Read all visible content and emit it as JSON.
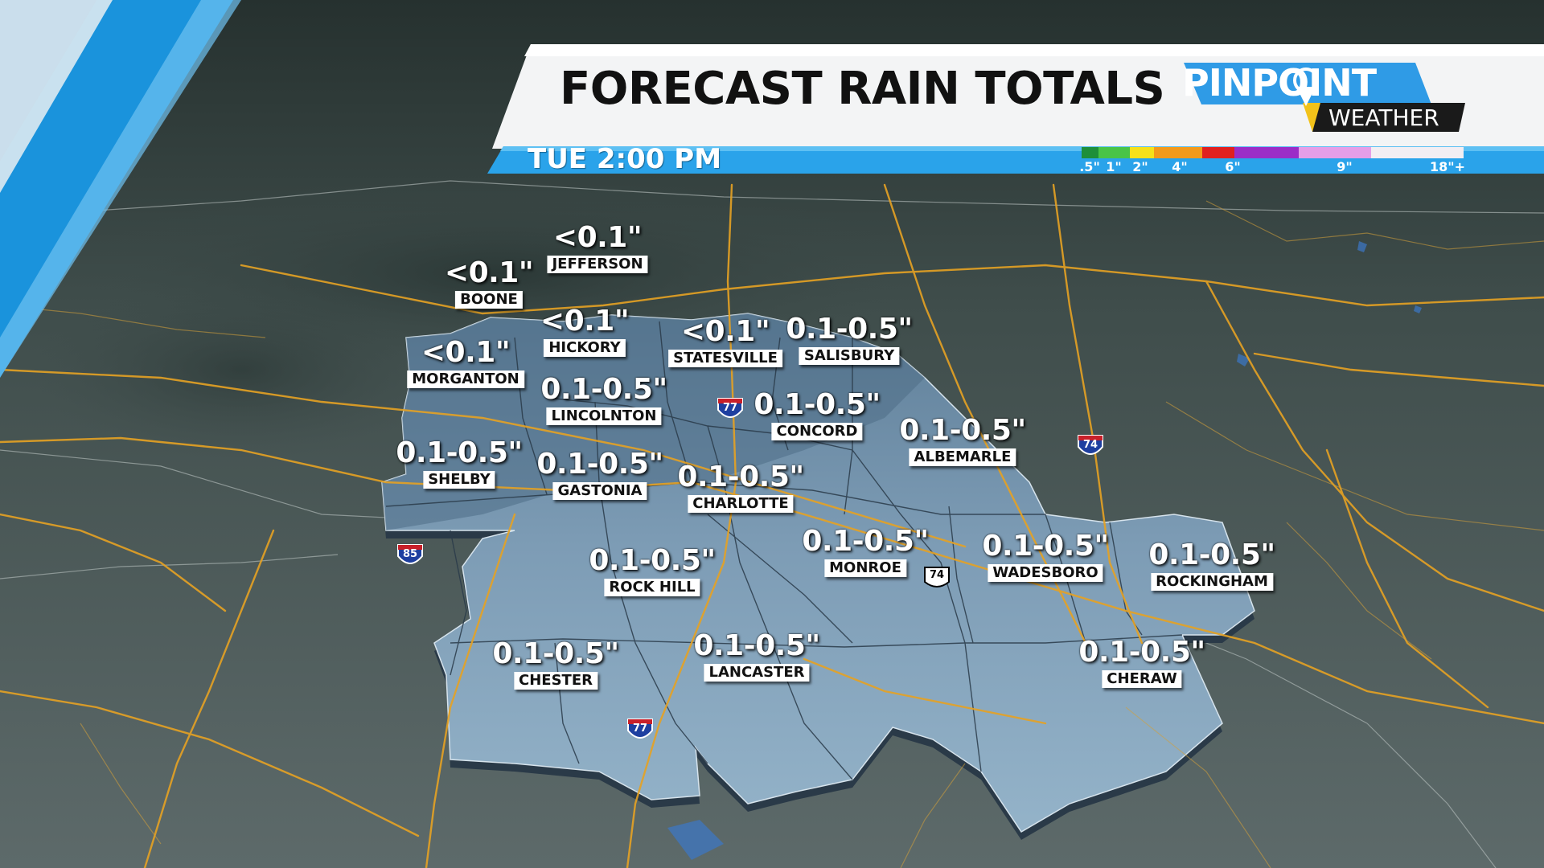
{
  "header": {
    "title": "FORECAST RAIN TOTALS",
    "time": "TUE 2:00 PM",
    "logo": {
      "top": "PINPOINT",
      "bottom": "WEATHER"
    },
    "scale": {
      "ticks": [
        ".5\"",
        "1\"",
        "2\"",
        "4\"",
        "6\"",
        "9\"",
        "18\"+"
      ],
      "colors": [
        "#1e8f3a",
        "#49c447",
        "#f6e11a",
        "#f39a1b",
        "#e0201f",
        "#9b2dc7",
        "#e69ee8",
        "#f3eef3"
      ]
    }
  },
  "cities": [
    {
      "id": "jefferson",
      "amount": "<0.1\"",
      "name": "JEFFERSON"
    },
    {
      "id": "boone",
      "amount": "<0.1\"",
      "name": "BOONE"
    },
    {
      "id": "hickory",
      "amount": "<0.1\"",
      "name": "HICKORY"
    },
    {
      "id": "statesville",
      "amount": "<0.1\"",
      "name": "STATESVILLE"
    },
    {
      "id": "salisbury",
      "amount": "0.1-0.5\"",
      "name": "SALISBURY"
    },
    {
      "id": "morganton",
      "amount": "<0.1\"",
      "name": "MORGANTON"
    },
    {
      "id": "lincolnton",
      "amount": "0.1-0.5\"",
      "name": "LINCOLNTON"
    },
    {
      "id": "concord",
      "amount": "0.1-0.5\"",
      "name": "CONCORD"
    },
    {
      "id": "albemarle",
      "amount": "0.1-0.5\"",
      "name": "ALBEMARLE"
    },
    {
      "id": "shelby",
      "amount": "0.1-0.5\"",
      "name": "SHELBY"
    },
    {
      "id": "gastonia",
      "amount": "0.1-0.5\"",
      "name": "GASTONIA"
    },
    {
      "id": "charlotte",
      "amount": "0.1-0.5\"",
      "name": "CHARLOTTE"
    },
    {
      "id": "monroe",
      "amount": "0.1-0.5\"",
      "name": "MONROE"
    },
    {
      "id": "wadesboro",
      "amount": "0.1-0.5\"",
      "name": "WADESBORO"
    },
    {
      "id": "rockingham",
      "amount": "0.1-0.5\"",
      "name": "ROCKINGHAM"
    },
    {
      "id": "rockhill",
      "amount": "0.1-0.5\"",
      "name": "ROCK HILL"
    },
    {
      "id": "chester",
      "amount": "0.1-0.5\"",
      "name": "CHESTER"
    },
    {
      "id": "lancaster",
      "amount": "0.1-0.5\"",
      "name": "LANCASTER"
    },
    {
      "id": "cheraw",
      "amount": "0.1-0.5\"",
      "name": "CHERAW"
    }
  ],
  "highways": [
    {
      "id": "i77-north",
      "type": "interstate",
      "number": "77"
    },
    {
      "id": "i74",
      "type": "interstate",
      "number": "74"
    },
    {
      "id": "i85",
      "type": "interstate",
      "number": "85"
    },
    {
      "id": "us74",
      "type": "us",
      "number": "74"
    },
    {
      "id": "i77-south",
      "type": "interstate",
      "number": "77"
    }
  ]
}
